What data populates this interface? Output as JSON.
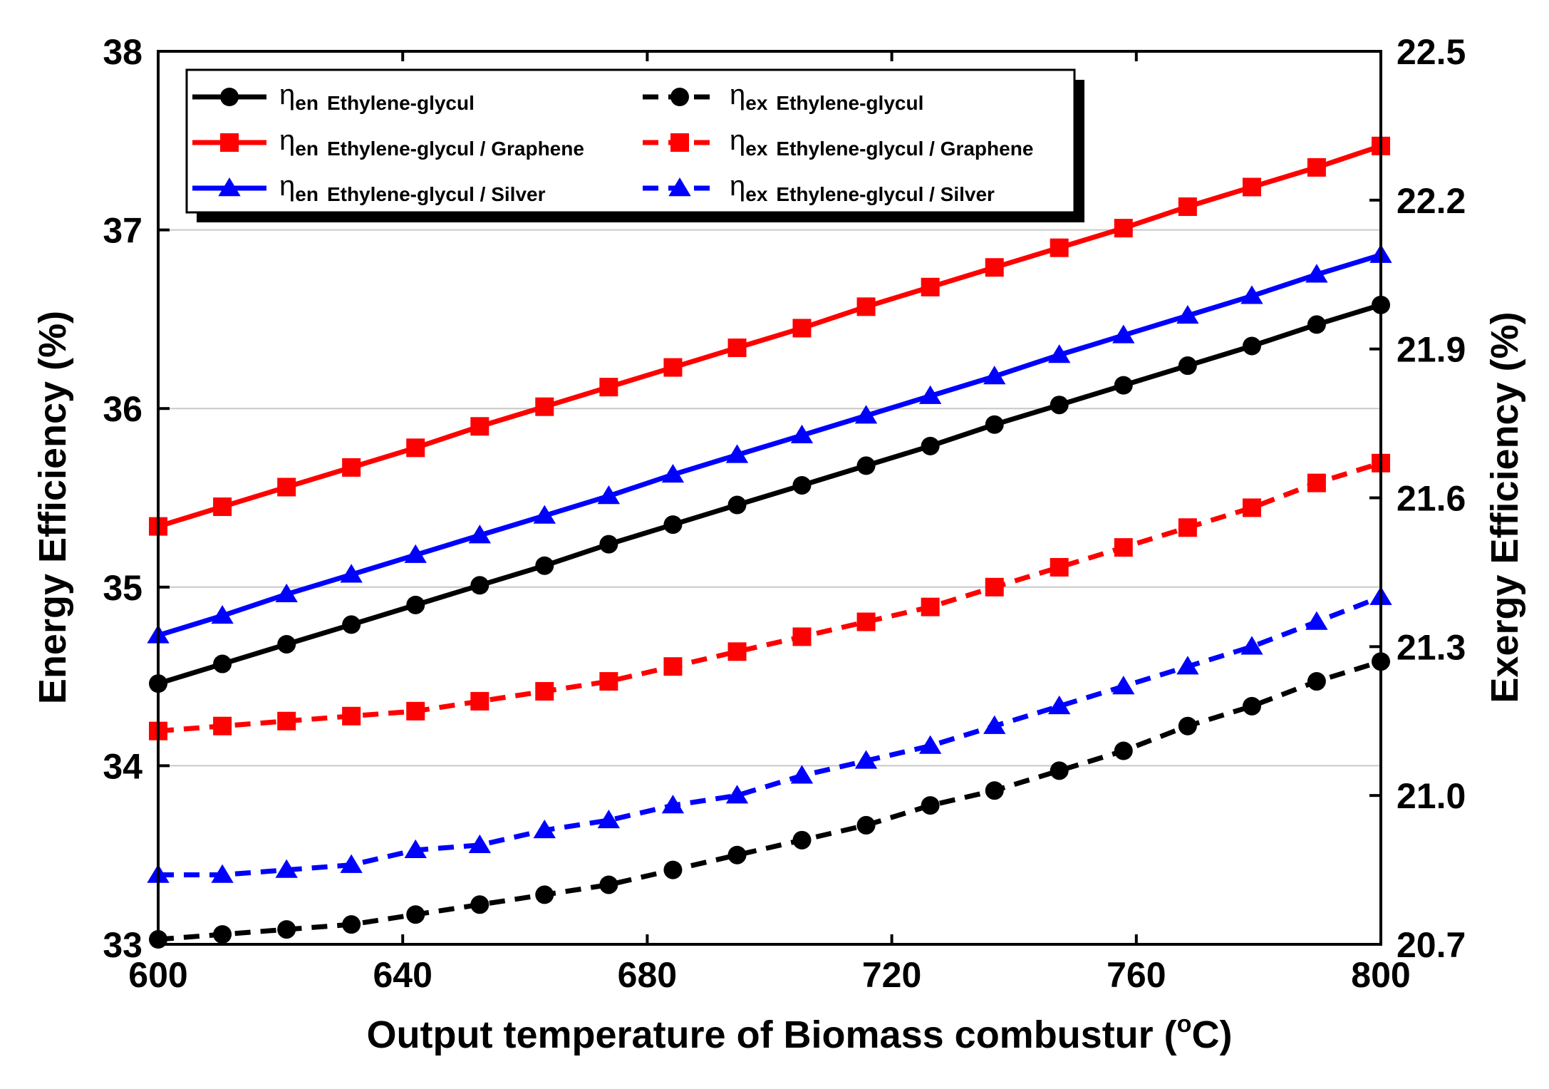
{
  "chart_data": {
    "type": "line",
    "xlabel_main": "Output temperature of Biomass combustur (",
    "xlabel_sup": "o",
    "xlabel_end": "C)",
    "ylabel_left": "Energy Efficiency (%)",
    "ylabel_right": "Exergy Efficiency (%)",
    "xlim": [
      600,
      800
    ],
    "ylim_left": [
      33,
      38
    ],
    "ylim_right": [
      20.7,
      22.5
    ],
    "x_ticks": [
      {
        "value": 600,
        "label": "600"
      },
      {
        "value": 640,
        "label": "640"
      },
      {
        "value": 680,
        "label": "680"
      },
      {
        "value": 720,
        "label": "720"
      },
      {
        "value": 760,
        "label": "760"
      },
      {
        "value": 800,
        "label": "800"
      }
    ],
    "y_left_ticks": [
      {
        "value": 33,
        "label": "33"
      },
      {
        "value": 34,
        "label": "34"
      },
      {
        "value": 35,
        "label": "35"
      },
      {
        "value": 36,
        "label": "36"
      },
      {
        "value": 37,
        "label": "37"
      },
      {
        "value": 38,
        "label": "38"
      }
    ],
    "y_right_ticks": [
      {
        "value": 20.7,
        "label": "20.7"
      },
      {
        "value": 21.0,
        "label": "21.0"
      },
      {
        "value": 21.3,
        "label": "21.3"
      },
      {
        "value": 21.6,
        "label": "21.6"
      },
      {
        "value": 21.9,
        "label": "21.9"
      },
      {
        "value": 22.2,
        "label": "22.2"
      },
      {
        "value": 22.5,
        "label": "22.5"
      }
    ],
    "gridlines_left": [
      34,
      35,
      36,
      37
    ],
    "x": [
      600,
      610.5,
      621,
      631.6,
      642.1,
      652.6,
      663.2,
      673.7,
      684.2,
      694.7,
      705.3,
      715.8,
      726.3,
      736.8,
      747.4,
      757.9,
      768.4,
      778.9,
      789.5,
      800
    ],
    "series": [
      {
        "key": "en_eg",
        "name": "Ethylene-glycul",
        "symbol": "η",
        "subscript": "en",
        "axis": "left",
        "color": "#000000",
        "dashed": false,
        "marker": "circle",
        "values": [
          34.46,
          34.57,
          34.68,
          34.79,
          34.9,
          35.01,
          35.12,
          35.24,
          35.35,
          35.46,
          35.57,
          35.68,
          35.79,
          35.91,
          36.02,
          36.13,
          36.24,
          36.35,
          36.47,
          36.58
        ]
      },
      {
        "key": "en_gr",
        "name": "Ethylene-glycul / Graphene",
        "symbol": "η",
        "subscript": "en",
        "axis": "left",
        "color": "#ff0000",
        "dashed": false,
        "marker": "square",
        "values": [
          35.34,
          35.45,
          35.56,
          35.67,
          35.78,
          35.9,
          36.01,
          36.12,
          36.23,
          36.34,
          36.45,
          36.57,
          36.68,
          36.79,
          36.9,
          37.01,
          37.13,
          37.24,
          37.35,
          37.47
        ]
      },
      {
        "key": "en_ag",
        "name": "Ethylene-glycul / Silver",
        "symbol": "η",
        "subscript": "en",
        "axis": "left",
        "color": "#0000ff",
        "dashed": false,
        "marker": "triangle",
        "values": [
          34.73,
          34.84,
          34.96,
          35.07,
          35.18,
          35.29,
          35.4,
          35.51,
          35.63,
          35.74,
          35.85,
          35.96,
          36.07,
          36.18,
          36.3,
          36.41,
          36.52,
          36.63,
          36.75,
          36.86
        ]
      },
      {
        "key": "ex_eg",
        "name": "Ethylene-glycul",
        "symbol": "η",
        "subscript": "ex",
        "axis": "right",
        "color": "#000000",
        "dashed": true,
        "marker": "circle",
        "values": [
          20.71,
          20.72,
          20.73,
          20.74,
          20.76,
          20.78,
          20.8,
          20.82,
          20.85,
          20.88,
          20.91,
          20.94,
          20.98,
          21.01,
          21.05,
          21.09,
          21.14,
          21.18,
          21.23,
          21.27
        ]
      },
      {
        "key": "ex_gr",
        "name": "Ethylene-glycul / Graphene",
        "symbol": "η",
        "subscript": "ex",
        "axis": "right",
        "color": "#ff0000",
        "dashed": true,
        "marker": "square",
        "values": [
          21.13,
          21.14,
          21.15,
          21.16,
          21.17,
          21.19,
          21.21,
          21.23,
          21.26,
          21.29,
          21.32,
          21.35,
          21.38,
          21.42,
          21.46,
          21.5,
          21.54,
          21.58,
          21.63,
          21.67
        ]
      },
      {
        "key": "ex_ag",
        "name": "Ethylene-glycul / Silver",
        "symbol": "η",
        "subscript": "ex",
        "axis": "right",
        "color": "#0000ff",
        "dashed": true,
        "marker": "triangle",
        "values": [
          20.84,
          20.84,
          20.85,
          20.86,
          20.89,
          20.9,
          20.93,
          20.95,
          20.98,
          21.0,
          21.04,
          21.07,
          21.1,
          21.14,
          21.18,
          21.22,
          21.26,
          21.3,
          21.35,
          21.4
        ]
      }
    ],
    "legend_placement": "top-left inside plot, two columns"
  }
}
